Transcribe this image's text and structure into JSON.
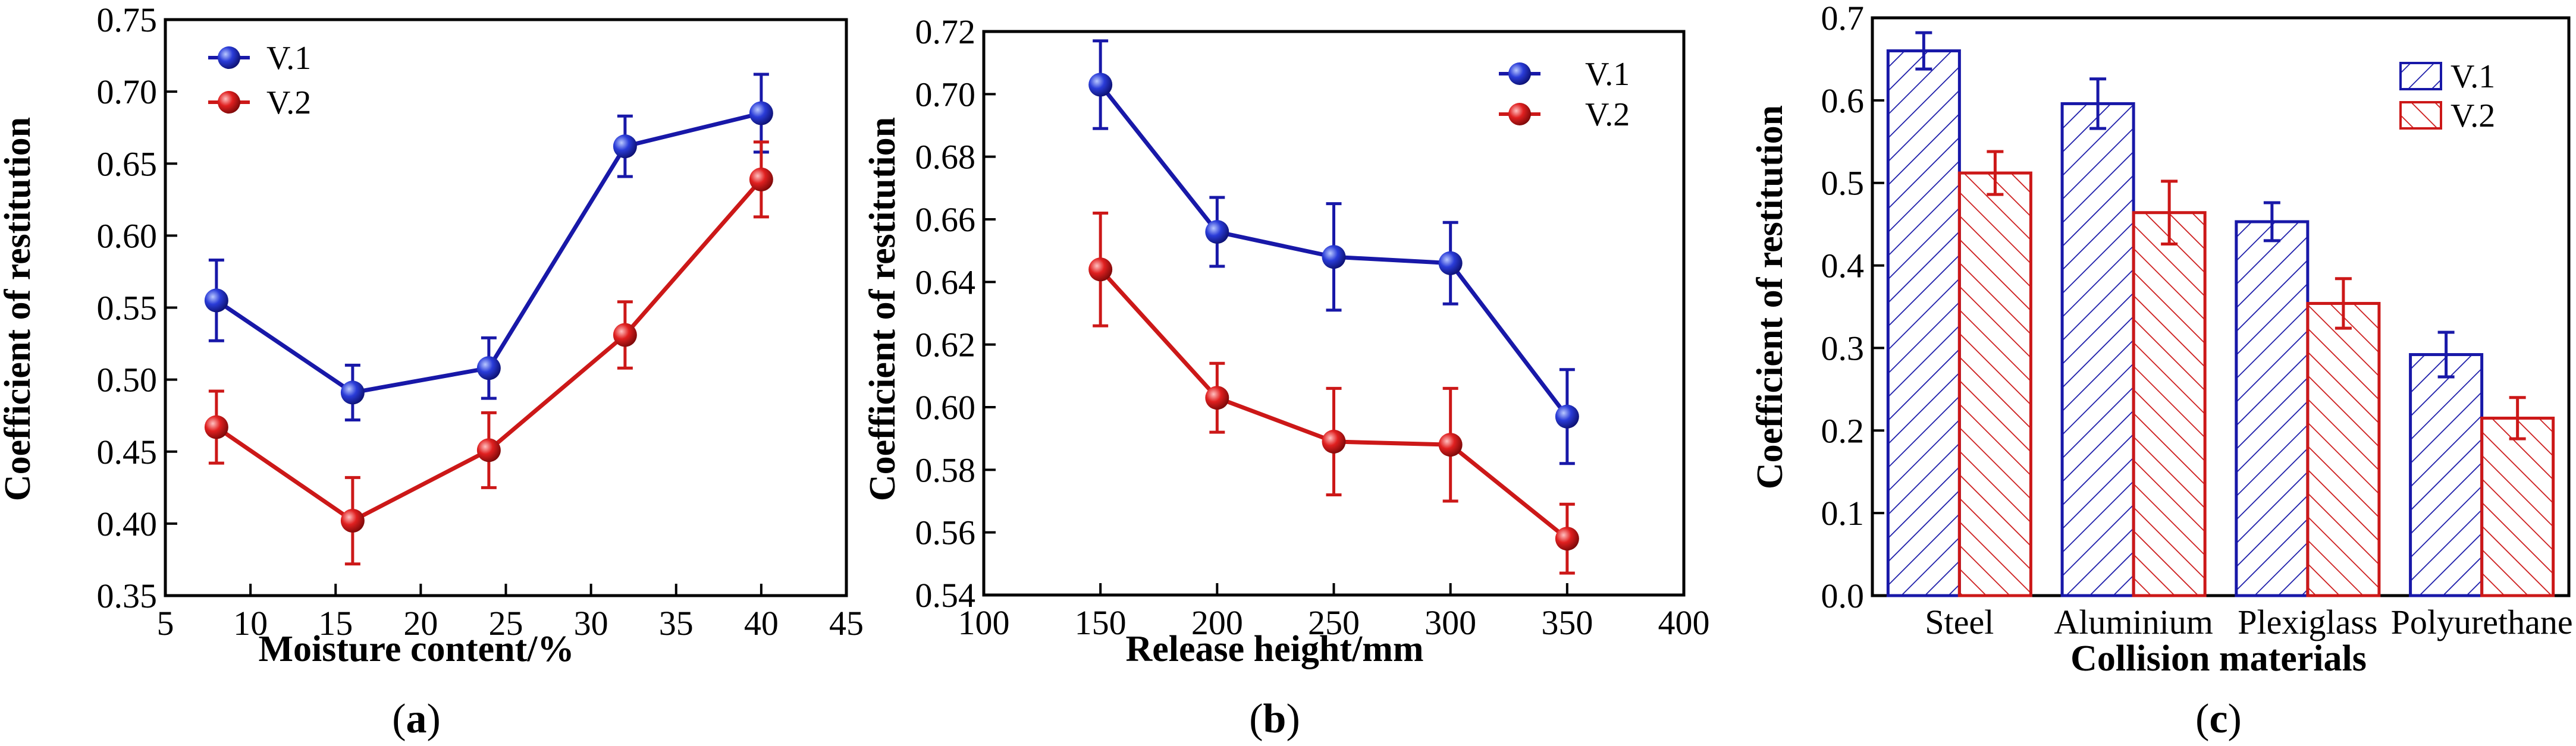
{
  "chart_data": [
    {
      "panel_label": "a",
      "type": "line",
      "xlabel": "Moisture content/%",
      "ylabel": "Coefficient of restitution",
      "xlim": [
        5,
        45
      ],
      "ylim": [
        0.35,
        0.75
      ],
      "xticks": [
        5,
        10,
        15,
        20,
        25,
        30,
        35,
        40,
        45
      ],
      "yticks": [
        0.35,
        0.4,
        0.45,
        0.5,
        0.55,
        0.6,
        0.65,
        0.7,
        0.75
      ],
      "xtick_labels": [
        "5",
        "10",
        "15",
        "20",
        "25",
        "30",
        "35",
        "40",
        "45"
      ],
      "ytick_labels": [
        "0.35",
        "0.40",
        "0.45",
        "0.50",
        "0.55",
        "0.60",
        "0.65",
        "0.70",
        "0.75"
      ],
      "legend_position": "top-left",
      "x": [
        8,
        16,
        24,
        32,
        40
      ],
      "series": [
        {
          "name": "V.1",
          "color": "#1818a8",
          "values": [
            0.555,
            0.491,
            0.508,
            0.662,
            0.685
          ],
          "errors": [
            0.028,
            0.019,
            0.021,
            0.021,
            0.027
          ]
        },
        {
          "name": "V.2",
          "color": "#cc1818",
          "values": [
            0.467,
            0.402,
            0.451,
            0.531,
            0.639
          ],
          "errors": [
            0.025,
            0.03,
            0.026,
            0.023,
            0.026
          ]
        }
      ]
    },
    {
      "panel_label": "b",
      "type": "line",
      "xlabel": "Release height/mm",
      "ylabel": "Coefficient of restitution",
      "xlim": [
        100,
        400
      ],
      "ylim": [
        0.54,
        0.72
      ],
      "xticks": [
        100,
        150,
        200,
        250,
        300,
        350,
        400
      ],
      "yticks": [
        0.54,
        0.56,
        0.58,
        0.6,
        0.62,
        0.64,
        0.66,
        0.68,
        0.7,
        0.72
      ],
      "xtick_labels": [
        "100",
        "150",
        "200",
        "250",
        "300",
        "350",
        "400"
      ],
      "ytick_labels": [
        "0.54",
        "0.56",
        "0.58",
        "0.60",
        "0.62",
        "0.64",
        "0.66",
        "0.68",
        "0.70",
        "0.72"
      ],
      "legend_position": "top-right",
      "x": [
        150,
        200,
        250,
        300,
        350
      ],
      "series": [
        {
          "name": "V.1",
          "color": "#1818a8",
          "values": [
            0.703,
            0.656,
            0.648,
            0.646,
            0.597
          ],
          "errors": [
            0.014,
            0.011,
            0.017,
            0.013,
            0.015
          ]
        },
        {
          "name": "V.2",
          "color": "#cc1818",
          "values": [
            0.644,
            0.603,
            0.589,
            0.588,
            0.558
          ],
          "errors": [
            0.018,
            0.011,
            0.017,
            0.018,
            0.011
          ]
        }
      ]
    },
    {
      "panel_label": "c",
      "type": "bar",
      "xlabel": "Collision materials",
      "ylabel": "Coefficient of restitution",
      "ylim": [
        0.0,
        0.7
      ],
      "yticks": [
        0.0,
        0.1,
        0.2,
        0.3,
        0.4,
        0.5,
        0.6,
        0.7
      ],
      "ytick_labels": [
        "0.0",
        "0.1",
        "0.2",
        "0.3",
        "0.4",
        "0.5",
        "0.6",
        "0.7"
      ],
      "legend_position": "top-right",
      "categories": [
        "Steel",
        "Aluminium",
        "Plexiglass",
        "Polyurethane"
      ],
      "series": [
        {
          "name": "V.1",
          "color": "#1818a8",
          "hatch": "forward",
          "values": [
            0.66,
            0.596,
            0.453,
            0.292
          ],
          "errors": [
            0.022,
            0.03,
            0.023,
            0.027
          ]
        },
        {
          "name": "V.2",
          "color": "#cc1818",
          "hatch": "backward",
          "values": [
            0.512,
            0.464,
            0.354,
            0.215
          ],
          "errors": [
            0.026,
            0.038,
            0.03,
            0.025
          ]
        }
      ]
    }
  ]
}
